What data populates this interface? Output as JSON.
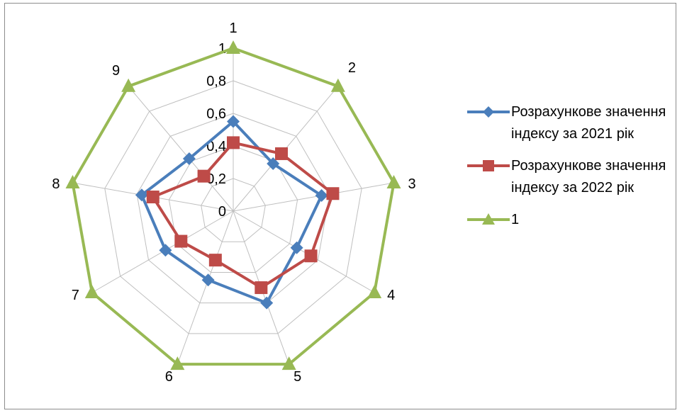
{
  "chart_data": {
    "type": "radar",
    "categories": [
      "1",
      "2",
      "3",
      "4",
      "5",
      "6",
      "7",
      "8",
      "9"
    ],
    "series": [
      {
        "name": "Розрахункове значення індексу за 2021 рік",
        "color": "#4a7ebb",
        "marker": "diamond",
        "values": [
          0.55,
          0.38,
          0.55,
          0.45,
          0.6,
          0.45,
          0.48,
          0.57,
          0.42
        ]
      },
      {
        "name": "Розрахункове значення індексу за 2022 рік",
        "color": "#be4b48",
        "marker": "square",
        "values": [
          0.42,
          0.46,
          0.62,
          0.55,
          0.5,
          0.32,
          0.37,
          0.5,
          0.28
        ]
      },
      {
        "name": "1",
        "color": "#98b954",
        "marker": "triangle",
        "values": [
          1,
          1,
          1,
          1,
          1,
          1,
          1,
          1,
          1
        ]
      }
    ],
    "rlim": [
      0,
      1
    ],
    "radial_ticks": [
      "0",
      "0,2",
      "0,4",
      "0,6",
      "0,8",
      "1"
    ],
    "grid": true,
    "legend_position": "right"
  }
}
